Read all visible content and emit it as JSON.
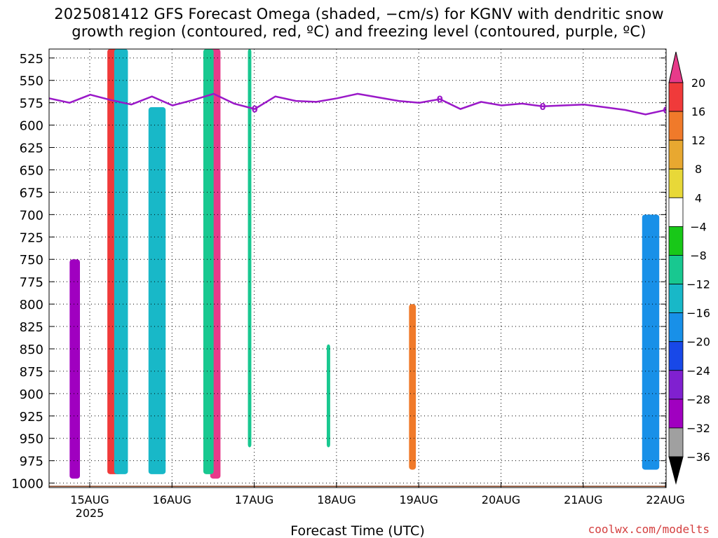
{
  "title": {
    "line1": "2025081412 GFS Forecast Omega (shaded, −cm/s) for KGNV with dendritic snow",
    "line2": "growth region (contoured, red, ºC) and freezing level (contoured, purple, ºC)"
  },
  "credit": "coolwx.com/modelts",
  "chart_data": {
    "type": "heatmap",
    "title": "2025081412 GFS Forecast Omega (shaded, −cm/s) for KGNV with dendritic snow growth region (contoured, red, ºC) and freezing level (contoured, purple, ºC)",
    "xlabel": "Forecast Time (UTC)",
    "x_ticks": [
      "15AUG",
      "16AUG",
      "17AUG",
      "18AUG",
      "19AUG",
      "20AUG",
      "21AUG",
      "22AUG"
    ],
    "x_sublabel": "2025",
    "y_ticks": [
      525,
      550,
      575,
      600,
      625,
      650,
      675,
      700,
      725,
      750,
      775,
      800,
      825,
      850,
      875,
      900,
      925,
      950,
      975,
      1000
    ],
    "ylabel": "",
    "ylim": [
      1000,
      515
    ],
    "xlim_hours": [
      0,
      180
    ],
    "grid": true,
    "colorbar": {
      "labels": [
        "20",
        "16",
        "12",
        "8",
        "4",
        "−4",
        "−8",
        "−12",
        "−16",
        "−20",
        "−24",
        "−28",
        "−32",
        "−36"
      ],
      "colors": [
        "#e83a8a",
        "#f03a3a",
        "#f07a2a",
        "#e8a830",
        "#e8d838",
        "#ffffff",
        "#18c818",
        "#18c890",
        "#18b8c8",
        "#1890e8",
        "#1848e8",
        "#8020d0",
        "#a000c0",
        "#a0a0a0",
        "#000000"
      ]
    },
    "freezing_level": {
      "label": "0",
      "hours": [
        0,
        6,
        12,
        18,
        24,
        30,
        36,
        42,
        48,
        54,
        60,
        66,
        72,
        78,
        84,
        90,
        96,
        102,
        108,
        114,
        120,
        126,
        132,
        138,
        144,
        150,
        156,
        162,
        168,
        174,
        180
      ],
      "pressure": [
        570,
        575,
        566,
        572,
        577,
        568,
        578,
        572,
        565,
        576,
        582,
        568,
        573,
        574,
        570,
        565,
        569,
        573,
        575,
        571,
        582,
        574,
        578,
        576,
        579,
        578,
        577,
        580,
        583,
        588,
        583
      ]
    },
    "omega_regions": [
      {
        "hour_start": 6,
        "hour_end": 9,
        "p_top": 750,
        "p_bottom": 995,
        "value": -30
      },
      {
        "hour_start": 17,
        "hour_end": 21,
        "p_top": 515,
        "p_bottom": 990,
        "value": 16
      },
      {
        "hour_start": 19,
        "hour_end": 23,
        "p_top": 515,
        "p_bottom": 990,
        "value": -12
      },
      {
        "hour_start": 29,
        "hour_end": 34,
        "p_top": 580,
        "p_bottom": 990,
        "value": -12
      },
      {
        "hour_start": 47,
        "hour_end": 50,
        "p_top": 515,
        "p_bottom": 995,
        "value": 20
      },
      {
        "hour_start": 45,
        "hour_end": 48,
        "p_top": 515,
        "p_bottom": 990,
        "value": -8
      },
      {
        "hour_start": 58,
        "hour_end": 59,
        "p_top": 515,
        "p_bottom": 960,
        "value": -8
      },
      {
        "hour_start": 81,
        "hour_end": 82,
        "p_top": 845,
        "p_bottom": 960,
        "value": -8
      },
      {
        "hour_start": 105,
        "hour_end": 107,
        "p_top": 800,
        "p_bottom": 985,
        "value": 12
      },
      {
        "hour_start": 173,
        "hour_end": 178,
        "p_top": 700,
        "p_bottom": 985,
        "value": -16
      }
    ]
  }
}
